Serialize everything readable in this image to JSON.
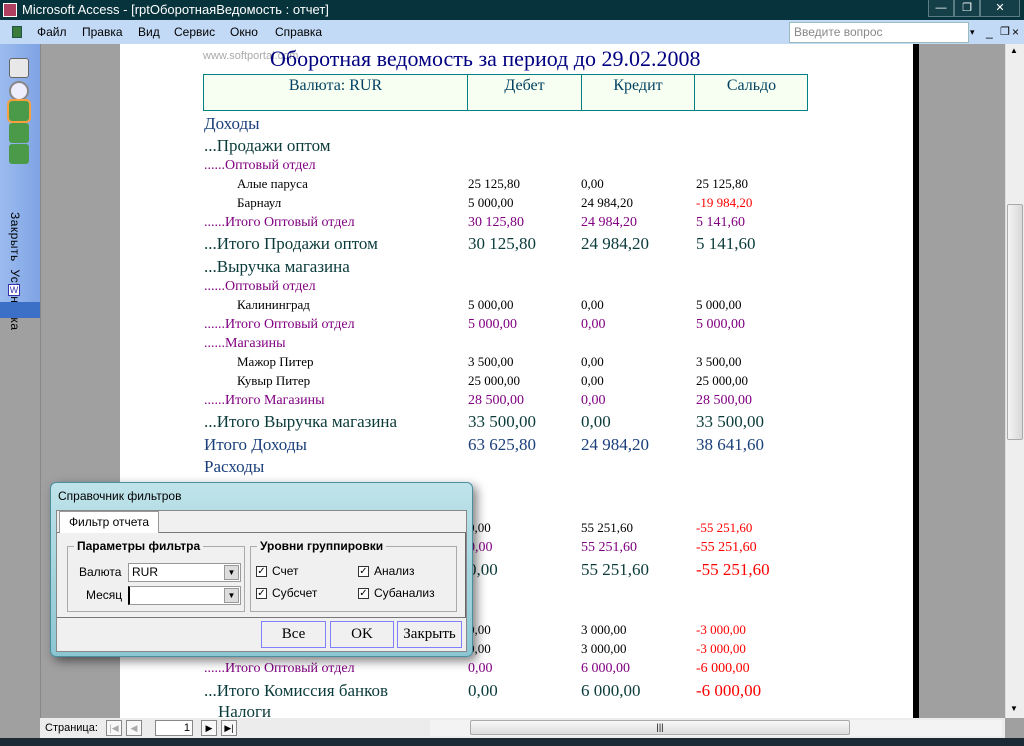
{
  "window": {
    "title": "Microsoft Access - [rptОборотнаяВедомость : отчет]",
    "min": "—",
    "max": "❐",
    "close": "✕"
  },
  "menu": {
    "items": [
      "Файл",
      "Правка",
      "Вид",
      "Сервис",
      "Окно",
      "Справка"
    ],
    "ask_placeholder": "Введите вопрос"
  },
  "toolbar": {
    "close_label": "Закрыть",
    "setup_label": "Установка"
  },
  "report": {
    "watermark": "www.softportal.com",
    "title": "Оборотная ведомость за период до 29.02.2008",
    "headers": [
      "Валюта: RUR",
      "Дебет",
      "Кредит",
      "Сальдо"
    ],
    "rows": [
      {
        "type": "section",
        "label": "Доходы",
        "debet": "",
        "credit": "",
        "saldo": ""
      },
      {
        "type": "group",
        "label": "...Продажи оптом",
        "debet": "",
        "credit": "",
        "saldo": ""
      },
      {
        "type": "sub",
        "label": "......Оптовый отдел",
        "debet": "",
        "credit": "",
        "saldo": ""
      },
      {
        "type": "item",
        "label": "Алые паруса",
        "debet": "25 125,80",
        "credit": "0,00",
        "saldo": "25 125,80"
      },
      {
        "type": "item",
        "label": "Барнаул",
        "debet": "5 000,00",
        "credit": "24 984,20",
        "saldo": "-19 984,20"
      },
      {
        "type": "sub",
        "label": "......Итого Оптовый отдел",
        "debet": "30 125,80",
        "credit": "24 984,20",
        "saldo": "5 141,60"
      },
      {
        "type": "group",
        "label": "...Итого Продажи оптом",
        "debet": "30 125,80",
        "credit": "24 984,20",
        "saldo": "5 141,60"
      },
      {
        "type": "group",
        "label": "...Выручка магазина",
        "debet": "",
        "credit": "",
        "saldo": ""
      },
      {
        "type": "sub",
        "label": "......Оптовый отдел",
        "debet": "",
        "credit": "",
        "saldo": ""
      },
      {
        "type": "item",
        "label": "Калининград",
        "debet": "5 000,00",
        "credit": "0,00",
        "saldo": "5 000,00"
      },
      {
        "type": "sub",
        "label": "......Итого Оптовый отдел",
        "debet": "5 000,00",
        "credit": "0,00",
        "saldo": "5 000,00"
      },
      {
        "type": "sub",
        "label": "......Магазины",
        "debet": "",
        "credit": "",
        "saldo": ""
      },
      {
        "type": "item",
        "label": "Мажор Питер",
        "debet": "3 500,00",
        "credit": "0,00",
        "saldo": "3 500,00"
      },
      {
        "type": "item",
        "label": "Кувыр Питер",
        "debet": "25 000,00",
        "credit": "0,00",
        "saldo": "25 000,00"
      },
      {
        "type": "sub",
        "label": "......Итого Магазины",
        "debet": "28 500,00",
        "credit": "0,00",
        "saldo": "28 500,00"
      },
      {
        "type": "group",
        "label": "...Итого Выручка магазина",
        "debet": "33 500,00",
        "credit": "0,00",
        "saldo": "33 500,00"
      },
      {
        "type": "section",
        "label": "Итого Доходы",
        "debet": "63 625,80",
        "credit": "24 984,20",
        "saldo": "38 641,60"
      },
      {
        "type": "section",
        "label": "Расходы",
        "debet": "",
        "credit": "",
        "saldo": ""
      },
      {
        "type": "item",
        "label": "",
        "debet": "0,00",
        "credit": "55 251,60",
        "saldo": "-55 251,60"
      },
      {
        "type": "sub",
        "label": "",
        "debet": "0,00",
        "credit": "55 251,60",
        "saldo": "-55 251,60"
      },
      {
        "type": "group",
        "label": "",
        "debet": "0,00",
        "credit": "55 251,60",
        "saldo": "-55 251,60"
      },
      {
        "type": "item",
        "label": "",
        "debet": "0,00",
        "credit": "3 000,00",
        "saldo": "-3 000,00"
      },
      {
        "type": "item",
        "label": "",
        "debet": "0,00",
        "credit": "3 000,00",
        "saldo": "-3 000,00"
      },
      {
        "type": "sub",
        "label": "......Итого Оптовый отдел",
        "debet": "0,00",
        "credit": "6 000,00",
        "saldo": "-6 000,00"
      },
      {
        "type": "group",
        "label": "...Итого Комиссия банков",
        "debet": "0,00",
        "credit": "6 000,00",
        "saldo": "-6 000,00"
      },
      {
        "type": "group",
        "label": "Налоги",
        "debet": "",
        "credit": "",
        "saldo": ""
      }
    ]
  },
  "dialog": {
    "title": "Справочник фильтров",
    "tab": "Фильтр отчета",
    "filter_group": "Параметры фильтра",
    "currency_label": "Валюта",
    "currency_value": "RUR",
    "month_label": "Месяц",
    "month_value": "",
    "levels_group": "Уровни группировки",
    "checks": [
      {
        "label": "Счет",
        "checked": true
      },
      {
        "label": "Анализ",
        "checked": true
      },
      {
        "label": "Субсчет",
        "checked": true
      },
      {
        "label": "Субанализ",
        "checked": true
      }
    ],
    "buttons": [
      "Все",
      "OK",
      "Закрыть"
    ]
  },
  "nav": {
    "page_label": "Страница:",
    "page": "1"
  },
  "colors": {
    "title_bar": "#06333c",
    "report_title": "#000080",
    "subtotal": "#800080",
    "negative": "#ff0000",
    "header_border": "#008080"
  }
}
